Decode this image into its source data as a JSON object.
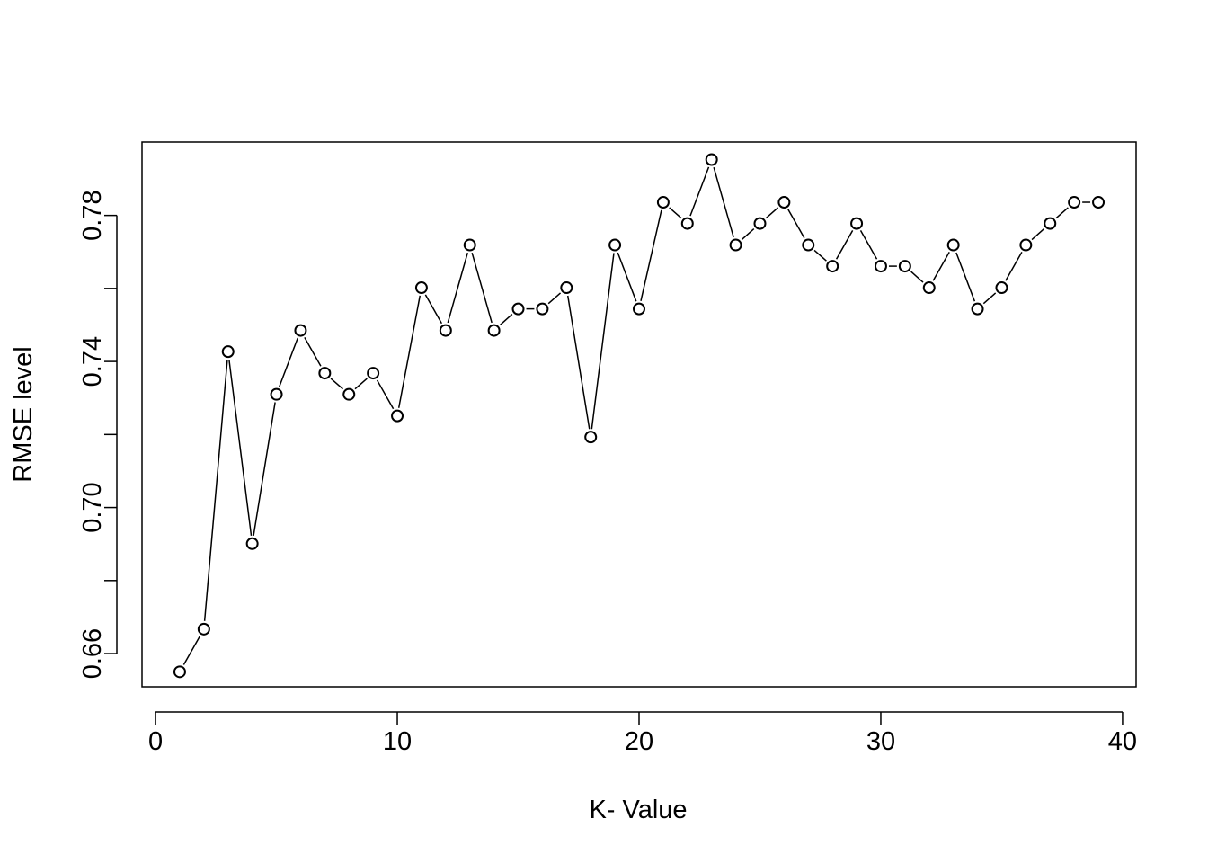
{
  "chart_data": {
    "type": "line",
    "title": "",
    "xlabel": "K- Value",
    "ylabel": "RMSE level",
    "xlim": [
      -0.56,
      40.56
    ],
    "ylim": [
      0.6509,
      0.8001
    ],
    "xticks": [
      0,
      10,
      20,
      30,
      40
    ],
    "yticks": [
      0.66,
      0.68,
      0.7,
      0.72,
      0.74,
      0.76,
      0.78
    ],
    "ytick_labels": [
      "0.66",
      "",
      "0.70",
      "",
      "0.74",
      "",
      "0.78"
    ],
    "xtick_labels": [
      "0",
      "10",
      "20",
      "30",
      "40"
    ],
    "grid": false,
    "legend": "none",
    "marker": "open-circle",
    "line_style": "gapped-line",
    "series": [
      {
        "x": [
          1,
          2,
          3,
          4,
          5,
          6,
          7,
          8,
          9,
          10,
          11,
          12,
          13,
          14,
          15,
          16,
          17,
          18,
          19,
          20,
          21,
          22,
          23,
          24,
          25,
          26,
          27,
          28,
          29,
          30,
          31,
          32,
          33,
          34,
          35,
          36,
          37,
          38,
          39
        ],
        "y": [
          0.655,
          0.6667,
          0.7427,
          0.6901,
          0.731,
          0.7485,
          0.7368,
          0.731,
          0.7368,
          0.7251,
          0.7602,
          0.7485,
          0.7719,
          0.7485,
          0.7544,
          0.7544,
          0.7602,
          0.7193,
          0.7719,
          0.7544,
          0.7836,
          0.7778,
          0.7953,
          0.7719,
          0.7778,
          0.7836,
          0.7719,
          0.7661,
          0.7778,
          0.7661,
          0.7661,
          0.7602,
          0.7719,
          0.7544,
          0.7602,
          0.7719,
          0.7778,
          0.7836,
          0.7836
        ]
      }
    ]
  }
}
